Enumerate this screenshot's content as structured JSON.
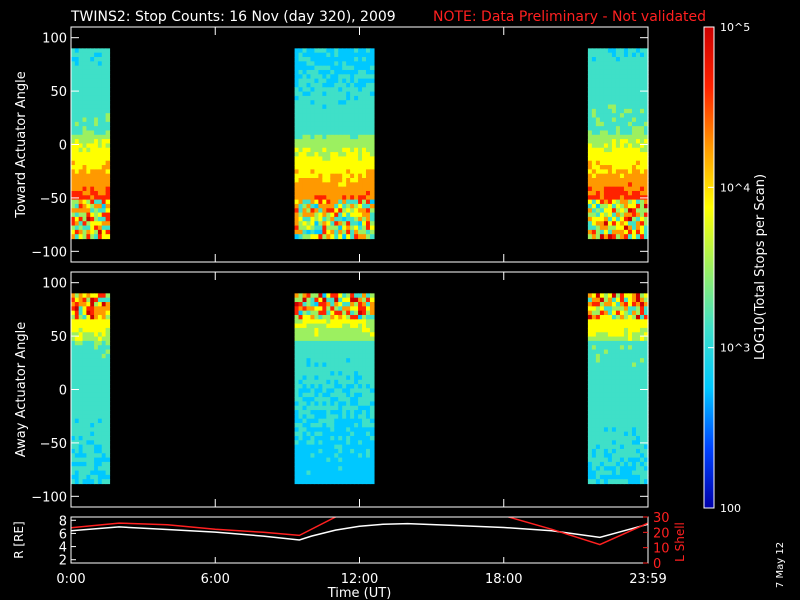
{
  "header": {
    "title": "TWINS2: Stop Counts: 16 Nov (day 320), 2009",
    "note": "NOTE: Data Preliminary - Not validated"
  },
  "footer": {
    "date_stamp": "7 May 12"
  },
  "colors": {
    "background": "#000000",
    "axes": "#ffffff",
    "note": "#ff2020",
    "l_shell": "#ff2020",
    "r_line": "#ffffff"
  },
  "colorbar": {
    "label": "LOG10(Total Stops per Scan)",
    "scale": "log",
    "range": [
      100,
      100000
    ],
    "ticks": [
      "100",
      "10^3",
      "10^4",
      "10^5"
    ],
    "colormap": [
      "#0000aa",
      "#0044ff",
      "#00c8ff",
      "#3fe0c8",
      "#9cf060",
      "#ffff00",
      "#ff9900",
      "#ff2200",
      "#cc0000"
    ]
  },
  "chart_data": [
    {
      "type": "heatmap",
      "panel": "toward",
      "ylabel": "Toward Actuator Angle",
      "ylim": [
        -110,
        110
      ],
      "yticks": [
        "100",
        "50",
        "0",
        "−50",
        "−100"
      ],
      "data_range_deg": [
        -88,
        90
      ],
      "x_unit": "hours UT",
      "coverage_intervals_hr": [
        [
          0.0,
          1.6
        ],
        [
          9.3,
          12.6
        ],
        [
          21.5,
          24.0
        ]
      ]
    },
    {
      "type": "heatmap",
      "panel": "away",
      "ylabel": "Away Actuator Angle",
      "ylim": [
        -110,
        110
      ],
      "yticks": [
        "100",
        "50",
        "0",
        "−50",
        "−100"
      ],
      "data_range_deg": [
        -88,
        90
      ],
      "x_unit": "hours UT",
      "coverage_intervals_hr": [
        [
          0.0,
          1.6
        ],
        [
          9.3,
          12.6
        ],
        [
          21.5,
          24.0
        ]
      ]
    },
    {
      "type": "line",
      "panel": "orbit",
      "xlabel": "Time (UT)",
      "xlim": [
        0,
        24
      ],
      "xticks": [
        "0:00",
        "6:00",
        "12:00",
        "18:00",
        "23:59"
      ],
      "left_axis": {
        "label": "R [RE]",
        "ylim": [
          1.5,
          8.5
        ],
        "ticks": [
          "8",
          "6",
          "4",
          "2"
        ]
      },
      "right_axis": {
        "label": "L Shell",
        "ylim": [
          0,
          30
        ],
        "ticks": [
          "30",
          "20",
          "10",
          "0"
        ]
      },
      "series": [
        {
          "name": "R [RE]",
          "axis": "left",
          "x": [
            0,
            2,
            4,
            6,
            8,
            9.5,
            10,
            11,
            12,
            13,
            14,
            16,
            18,
            20,
            22,
            24
          ],
          "values": [
            6.4,
            7.0,
            6.6,
            6.2,
            5.6,
            5.0,
            5.6,
            6.5,
            7.1,
            7.4,
            7.5,
            7.2,
            6.9,
            6.4,
            5.4,
            7.4
          ]
        },
        {
          "name": "L Shell",
          "axis": "right",
          "x": [
            0,
            2,
            4,
            6,
            8,
            9.5,
            11,
            11.4,
            null,
            18.0,
            18.2,
            20,
            22,
            24
          ],
          "values": [
            23,
            26,
            25,
            22,
            20,
            18,
            30,
            34,
            null,
            34,
            30,
            22,
            12,
            26
          ]
        }
      ]
    }
  ]
}
